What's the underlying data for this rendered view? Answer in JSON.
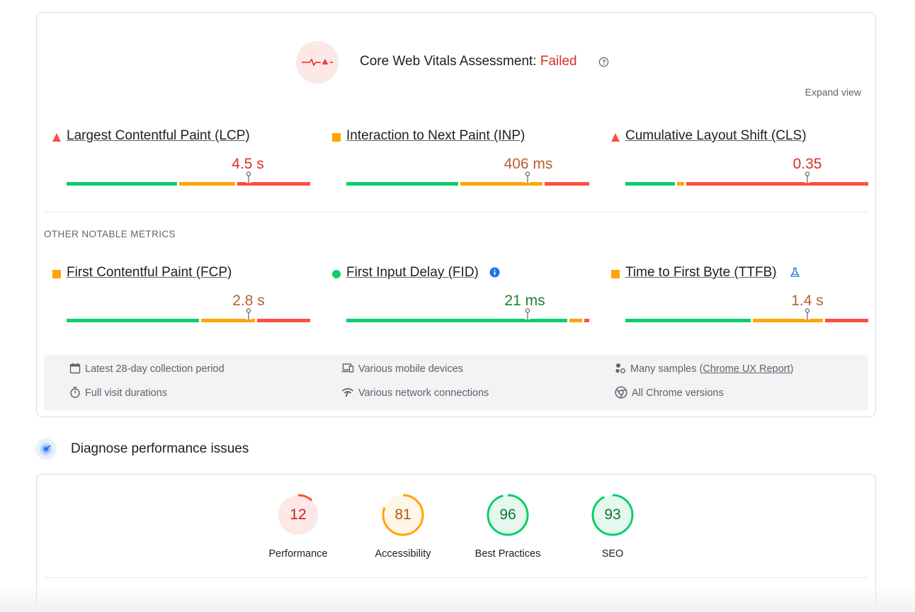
{
  "assessment": {
    "title_prefix": "Core Web Vitals Assessment: ",
    "status": "Failed",
    "help_icon": "help-circle-icon",
    "expand_label": "Expand view"
  },
  "core_metrics": [
    {
      "name": "Largest Contentful Paint (LCP)",
      "value": "4.5 s",
      "rating": "poor",
      "marker": "red-triangle"
    },
    {
      "name": "Interaction to Next Paint (INP)",
      "value": "406 ms",
      "rating": "needs-improvement",
      "marker": "orange-square"
    },
    {
      "name": "Cumulative Layout Shift (CLS)",
      "value": "0.35",
      "rating": "poor",
      "marker": "red-triangle"
    }
  ],
  "other_label": "OTHER NOTABLE METRICS",
  "other_metrics": [
    {
      "name": "First Contentful Paint (FCP)",
      "value": "2.8 s",
      "rating": "needs-improvement",
      "marker": "orange-square"
    },
    {
      "name": "First Input Delay (FID)",
      "value": "21 ms",
      "rating": "good",
      "marker": "green-circle",
      "extra_icon": "info-icon"
    },
    {
      "name": "Time to First Byte (TTFB)",
      "value": "1.4 s",
      "rating": "needs-improvement",
      "marker": "orange-square",
      "extra_icon": "flask-icon"
    }
  ],
  "distribution_colors": {
    "good": "#0cce6b",
    "needs_improvement": "#ffa400",
    "poor": "#ff4e42"
  },
  "value_colors": {
    "poor": "#d93025",
    "needs_improvement": "#b7622c",
    "good": "#188038"
  },
  "info": {
    "collection_period": "Latest 28-day collection period",
    "visit_durations": "Full visit durations",
    "devices": "Various mobile devices",
    "network": "Various network connections",
    "samples_prefix": "Many samples (",
    "samples_link": "Chrome UX Report",
    "samples_suffix": ")",
    "chrome_versions": "All Chrome versions"
  },
  "diagnose": {
    "title": "Diagnose performance issues",
    "icon": "lighthouse-icon"
  },
  "scores": [
    {
      "label": "Performance",
      "value": "12",
      "score": 12,
      "rating": "poor"
    },
    {
      "label": "Accessibility",
      "value": "81",
      "score": 81,
      "rating": "needs-improvement"
    },
    {
      "label": "Best Practices",
      "value": "96",
      "score": 96,
      "rating": "good"
    },
    {
      "label": "SEO",
      "value": "93",
      "score": 93,
      "rating": "good"
    }
  ]
}
